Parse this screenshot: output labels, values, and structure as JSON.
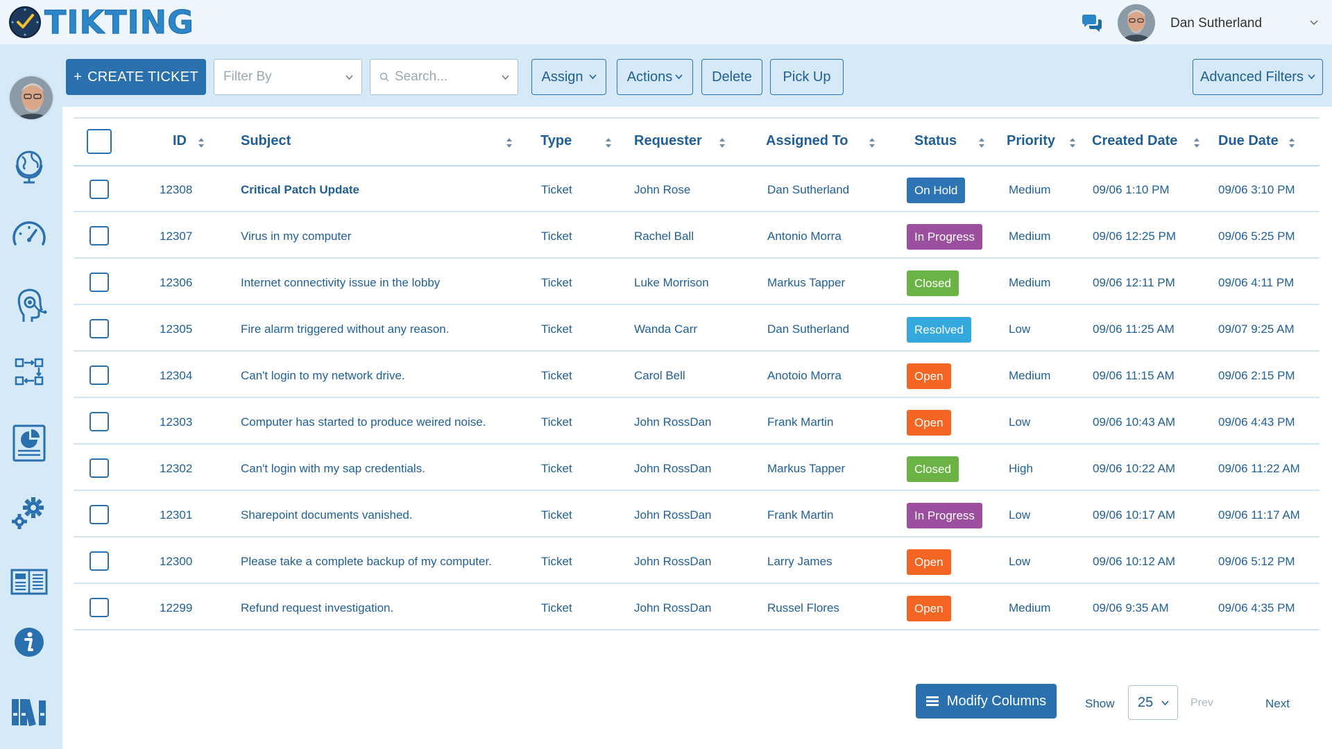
{
  "brand": {
    "name": "TIKTING"
  },
  "user": {
    "name": "Dan Sutherland"
  },
  "toolbar": {
    "create_label": "CREATE TICKET",
    "filter_placeholder": "Filter By",
    "search_placeholder": "Search...",
    "assign_label": "Assign",
    "actions_label": "Actions",
    "delete_label": "Delete",
    "pickup_label": "Pick Up",
    "advanced_label": "Advanced Filters"
  },
  "table": {
    "headers": {
      "id": "ID",
      "subject": "Subject",
      "type": "Type",
      "requester": "Requester",
      "assigned": "Assigned To",
      "status": "Status",
      "priority": "Priority",
      "created": "Created Date",
      "due": "Due Date"
    },
    "rows": [
      {
        "id": "12308",
        "subject": "Critical Patch Update",
        "type": "Ticket",
        "requester": "John Rose",
        "assigned": "Dan Sutherland",
        "status": "On Hold",
        "priority": "Medium",
        "created": "09/06 1:10 PM",
        "due": "09/06 3:10 PM"
      },
      {
        "id": "12307",
        "subject": "Virus in my computer",
        "type": "Ticket",
        "requester": "Rachel Ball",
        "assigned": "Antonio Morra",
        "status": "In Progress",
        "priority": "Medium",
        "created": "09/06 12:25 PM",
        "due": "09/06 5:25 PM"
      },
      {
        "id": "12306",
        "subject": "Internet connectivity issue in the lobby",
        "type": "Ticket",
        "requester": "Luke Morrison",
        "assigned": "Markus Tapper",
        "status": "Closed",
        "priority": "Medium",
        "created": "09/06 12:11 PM",
        "due": "09/06 4:11 PM"
      },
      {
        "id": "12305",
        "subject": "Fire alarm triggered without any reason.",
        "type": "Ticket",
        "requester": "Wanda Carr",
        "assigned": "Dan Sutherland",
        "status": "Resolved",
        "priority": "Low",
        "created": "09/06 11:25 AM",
        "due": "09/07 9:25 AM"
      },
      {
        "id": "12304",
        "subject": "Can't login to my network drive.",
        "type": "Ticket",
        "requester": "Carol Bell",
        "assigned": "Anotoio Morra",
        "status": "Open",
        "priority": "Medium",
        "created": "09/06 11:15 AM",
        "due": "09/06 2:15 PM"
      },
      {
        "id": "12303",
        "subject": "Computer has started to produce weired noise.",
        "type": "Ticket",
        "requester": "John RossDan",
        "assigned": "Frank Martin",
        "status": "Open",
        "priority": "Low",
        "created": "09/06 10:43 AM",
        "due": "09/06 4:43 PM"
      },
      {
        "id": "12302",
        "subject": "Can't login with my sap credentials.",
        "type": "Ticket",
        "requester": "John RossDan",
        "assigned": "Markus Tapper",
        "status": "Closed",
        "priority": "High",
        "created": "09/06 10:22 AM",
        "due": "09/06 11:22 AM"
      },
      {
        "id": "12301",
        "subject": "Sharepoint documents vanished.",
        "type": "Ticket",
        "requester": "John RossDan",
        "assigned": "Frank Martin",
        "status": "In Progress",
        "priority": "Low",
        "created": "09/06 10:17 AM",
        "due": "09/06 11:17 AM"
      },
      {
        "id": "12300",
        "subject": "Please take a complete backup of my computer.",
        "type": "Ticket",
        "requester": "John RossDan",
        "assigned": "Larry James",
        "status": "Open",
        "priority": "Low",
        "created": "09/06 10:12 AM",
        "due": "09/06 5:12 PM"
      },
      {
        "id": "12299",
        "subject": "Refund request investigation.",
        "type": "Ticket",
        "requester": "John RossDan",
        "assigned": "Russel Flores",
        "status": "Open",
        "priority": "Medium",
        "created": "09/06 9:35 AM",
        "due": "09/06 4:35 PM"
      }
    ]
  },
  "status_colors": {
    "On Hold": "#2e75b6",
    "In Progress": "#9c4f9e",
    "Closed": "#6ab344",
    "Resolved": "#35a8dd",
    "Open": "#f26522"
  },
  "footer": {
    "modify_label": "Modify Columns",
    "show_label": "Show",
    "page_size": "25",
    "prev_label": "Prev",
    "next_label": "Next"
  },
  "icons": {
    "sidebar": [
      "globe-icon",
      "dashboard-icon",
      "support-agent-icon",
      "workflow-icon",
      "report-icon",
      "settings-icon",
      "knowledge-base-icon",
      "info-icon",
      "library-icon"
    ]
  }
}
